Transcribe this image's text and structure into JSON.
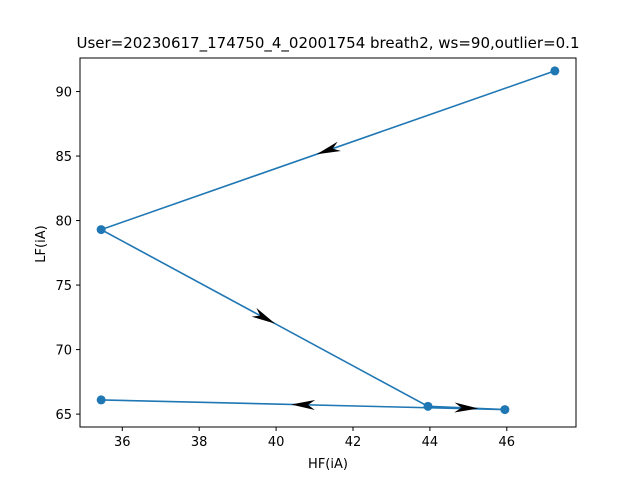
{
  "chart_data": {
    "type": "line",
    "title": "User=20230617_174750_4_02001754 breath2, ws=90,outlier=0.1",
    "xlabel": "HF(iA)",
    "ylabel": "LF(iA)",
    "xlim": [
      34.9,
      47.8
    ],
    "ylim": [
      64.0,
      92.6
    ],
    "xticks": [
      36,
      38,
      40,
      42,
      44,
      46
    ],
    "yticks": [
      65,
      70,
      75,
      80,
      85,
      90
    ],
    "grid": false,
    "series": [
      {
        "color": "#1f77b4",
        "marker": "circle",
        "points": [
          {
            "x": 47.25,
            "y": 91.6
          },
          {
            "x": 35.45,
            "y": 79.3
          },
          {
            "x": 43.95,
            "y": 65.6
          },
          {
            "x": 45.95,
            "y": 65.35
          },
          {
            "x": 35.45,
            "y": 66.1
          }
        ]
      }
    ],
    "direction_arrows": {
      "color": "#000000",
      "placement": "segment-midpoints"
    }
  }
}
